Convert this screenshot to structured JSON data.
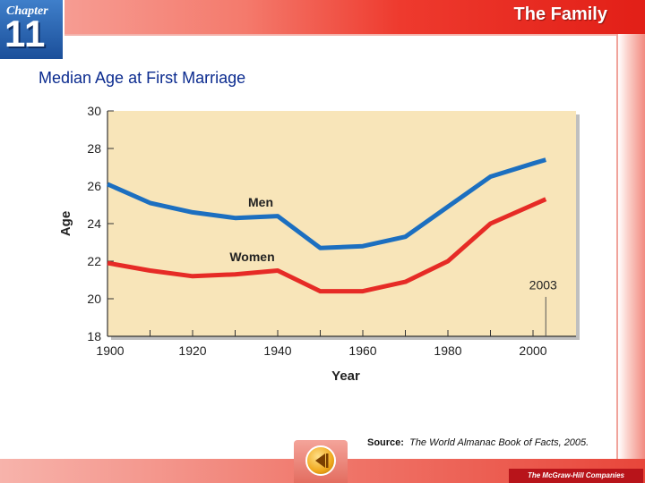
{
  "header": {
    "chapter_label": "Chapter",
    "chapter_number": "11",
    "section_title": "The Family"
  },
  "chart_data": {
    "type": "line",
    "title": "Median Age at First Marriage",
    "xlabel": "Year",
    "ylabel": "Age",
    "x_ticks": [
      1900,
      1920,
      1940,
      1960,
      1980,
      2000
    ],
    "y_ticks": [
      18,
      20,
      22,
      24,
      26,
      28,
      30
    ],
    "xlim": [
      1900,
      2010
    ],
    "ylim": [
      18,
      30
    ],
    "grid": false,
    "series": [
      {
        "name": "Men",
        "color": "#1c6fc0",
        "x": [
          1900,
          1910,
          1920,
          1930,
          1940,
          1950,
          1960,
          1970,
          1980,
          1990,
          2000,
          2003
        ],
        "values": [
          26.1,
          25.1,
          24.6,
          24.3,
          24.4,
          22.7,
          22.8,
          23.3,
          24.9,
          26.5,
          27.2,
          27.4
        ]
      },
      {
        "name": "Women",
        "color": "#e62b26",
        "x": [
          1900,
          1910,
          1920,
          1930,
          1940,
          1950,
          1960,
          1970,
          1980,
          1990,
          2000,
          2003
        ],
        "values": [
          21.9,
          21.5,
          21.2,
          21.3,
          21.5,
          20.4,
          20.4,
          20.9,
          22.0,
          24.0,
          25.0,
          25.3
        ]
      }
    ],
    "annotations": [
      {
        "text": "2003",
        "x": 2003
      }
    ]
  },
  "footer": {
    "source_label": "Source:",
    "source_text": "The World Almanac Book of Facts, 2005.",
    "publisher": "The McGraw-Hill Companies"
  },
  "colors": {
    "plot_background": "#f8e5b9",
    "title": "#0b2b8f",
    "men_line": "#1c6fc0",
    "women_line": "#e62b26"
  },
  "icons": {
    "back": "back-arrow-icon"
  }
}
